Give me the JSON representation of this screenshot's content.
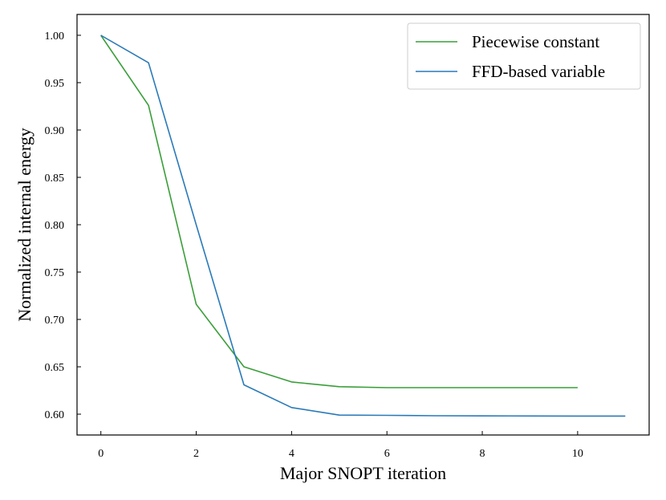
{
  "chart_data": {
    "type": "line",
    "title": "",
    "xlabel": "Major SNOPT iteration",
    "ylabel": "Normalized internal energy",
    "xlim": [
      -0.5,
      11.5
    ],
    "ylim": [
      0.578,
      1.022
    ],
    "xticks": [
      0,
      2,
      4,
      6,
      8,
      10
    ],
    "xtick_labels": [
      "0",
      "2",
      "4",
      "6",
      "8",
      "10"
    ],
    "yticks": [
      0.6,
      0.65,
      0.7,
      0.75,
      0.8,
      0.85,
      0.9,
      0.95,
      1.0
    ],
    "ytick_labels": [
      "0.60",
      "0.65",
      "0.70",
      "0.75",
      "0.80",
      "0.85",
      "0.90",
      "0.95",
      "1.00"
    ],
    "grid": false,
    "legend_position": "top-right",
    "series": [
      {
        "name": "Piecewise constant",
        "color": "#3a9e3a",
        "x": [
          0,
          1,
          2,
          3,
          4,
          5,
          6,
          7,
          8,
          9,
          10
        ],
        "y": [
          1.0,
          0.926,
          0.716,
          0.65,
          0.634,
          0.629,
          0.628,
          0.628,
          0.628,
          0.628,
          0.628
        ]
      },
      {
        "name": "FFD-based variable",
        "color": "#2a7ab8",
        "x": [
          0,
          1,
          2,
          3,
          4,
          5,
          6,
          7,
          8,
          9,
          10,
          11
        ],
        "y": [
          1.0,
          0.971,
          0.8,
          0.631,
          0.607,
          0.599,
          0.5988,
          0.5983,
          0.5982,
          0.5981,
          0.598,
          0.598
        ]
      }
    ]
  }
}
